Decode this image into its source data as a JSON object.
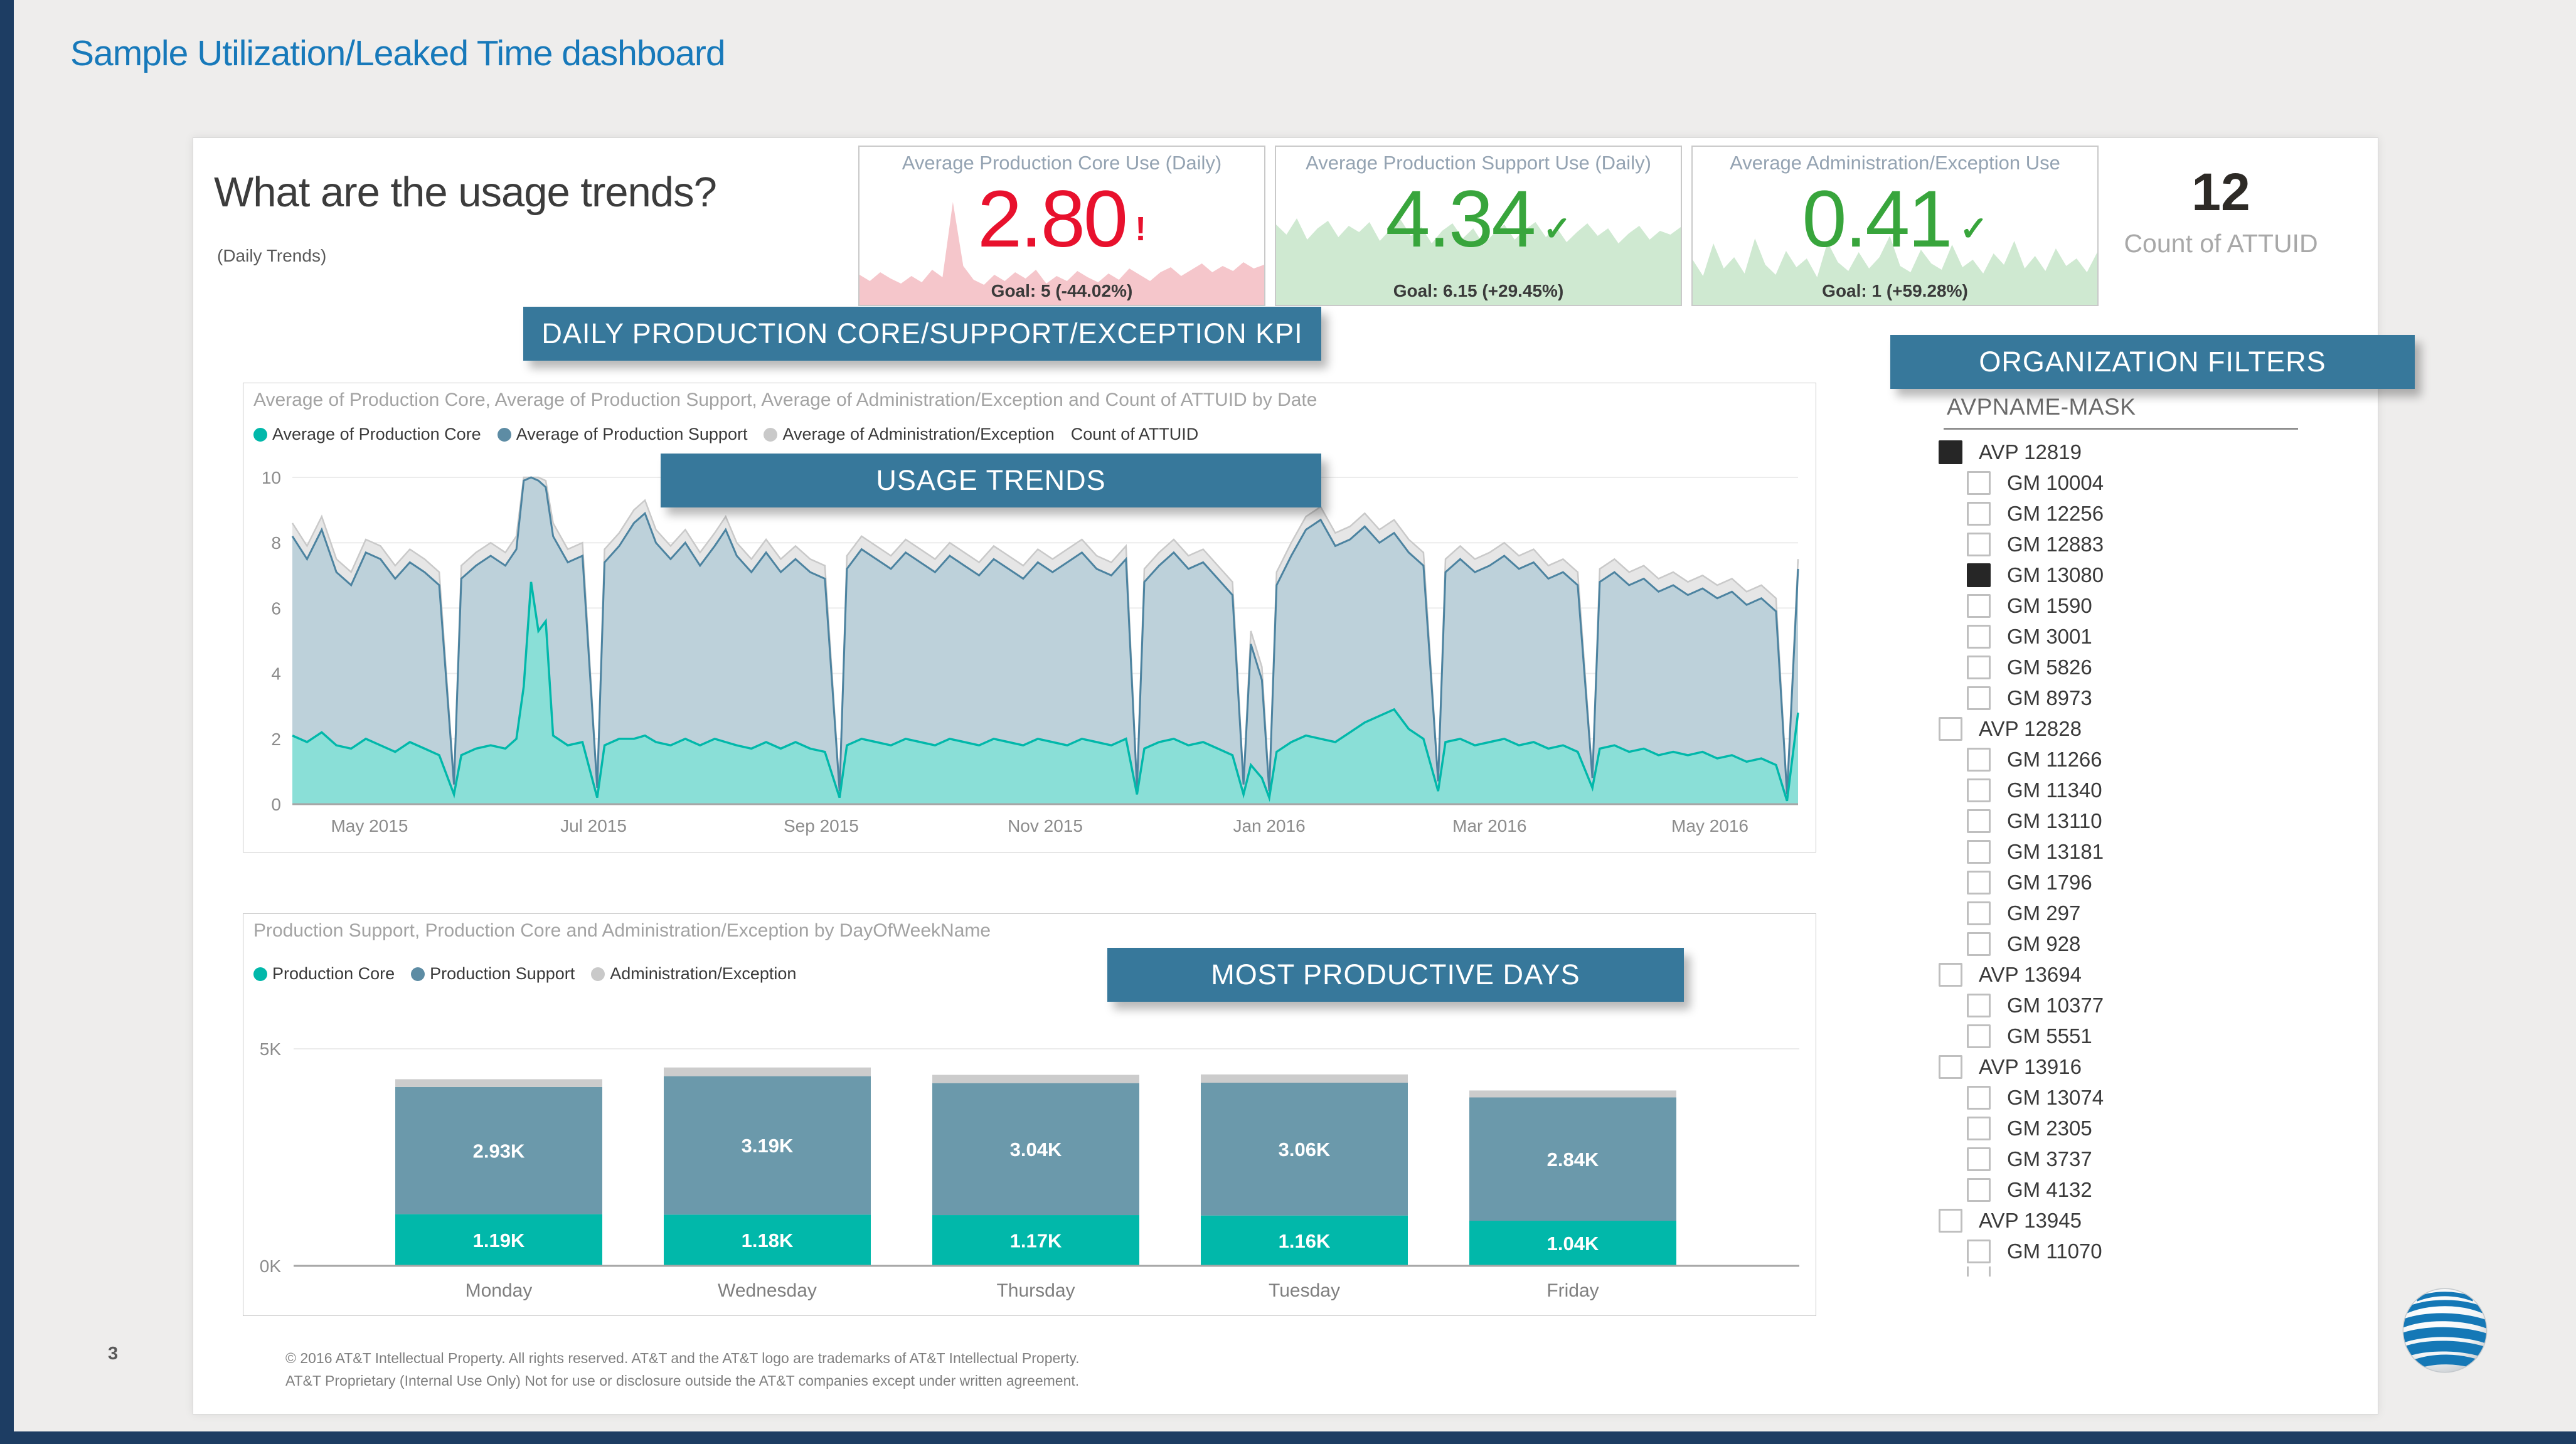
{
  "page": {
    "title": "Sample Utilization/Leaked Time dashboard",
    "page_number": "3",
    "footer_line1": "© 2016 AT&T Intellectual Property. All rights reserved. AT&T and the AT&T logo are trademarks of AT&T Intellectual Property.",
    "footer_line2": "AT&T Proprietary (Internal Use Only) Not for use or disclosure outside the AT&T companies except under written agreement."
  },
  "colors": {
    "banner": "#37789b",
    "title_blue": "#1779ba",
    "navy_strip": "#1d3d63",
    "core": "#01b8aa",
    "core_fill": "#8adfd7",
    "support": "#4c83a0",
    "support_fill": "#bdd1da",
    "admin": "#c9c9c9",
    "admin_fill": "#e6e6e6",
    "kpi_red": "#e8112d",
    "kpi_red_fill": "#f5c6cb",
    "kpi_green": "#38a53c",
    "kpi_green_fill": "#cfe9d1",
    "axis_text": "#8c8c8c",
    "gridline": "#ececec",
    "axis_line": "#a6a6a6"
  },
  "header": {
    "question": "What are the usage trends?",
    "subtitle": "(Daily Trends)"
  },
  "banners": {
    "kpi": "DAILY PRODUCTION CORE/SUPPORT/EXCEPTION KPI",
    "usage": "USAGE TRENDS",
    "days": "MOST PRODUCTIVE DAYS",
    "filters": "ORGANIZATION FILTERS"
  },
  "kpis": [
    {
      "title": "Average Production Core Use (Daily)",
      "value": "2.80",
      "status_icon": "!",
      "theme": "red",
      "goal_text": "Goal: 5 (-44.02%)",
      "spark": [
        2.4,
        1.9,
        2.6,
        2.1,
        1.7,
        2.3,
        1.8,
        2.8,
        2.2,
        8.2,
        3.1,
        2.0,
        1.6,
        2.4,
        1.9,
        2.6,
        2.1,
        2.8,
        1.7,
        2.3,
        1.9,
        2.7,
        2.2,
        1.8,
        2.5,
        2.0,
        2.9,
        2.4,
        1.9,
        2.6,
        3.0,
        2.3,
        2.8,
        3.3,
        2.6,
        3.1,
        2.7,
        3.4,
        2.9,
        3.2
      ]
    },
    {
      "title": "Average Production Support Use (Daily)",
      "value": "4.34",
      "status_icon": "✓",
      "theme": "green",
      "goal_text": "Goal: 6.15 (+29.45%)",
      "spark": [
        6.4,
        5.6,
        6.9,
        5.2,
        6.1,
        6.7,
        5.4,
        6.3,
        5.8,
        6.6,
        5.1,
        6.0,
        6.8,
        5.5,
        6.2,
        4.9,
        5.9,
        6.5,
        5.3,
        6.1,
        4.8,
        5.7,
        6.4,
        5.2,
        6.0,
        6.6,
        5.4,
        6.2,
        5.0,
        5.8,
        6.5,
        5.5,
        6.1,
        4.9,
        5.7,
        6.3,
        5.2,
        5.9,
        5.6,
        6.2
      ]
    },
    {
      "title": "Average Administration/Exception Use",
      "value": "0.41",
      "status_icon": "✓",
      "theme": "green",
      "goal_text": "Goal: 1 (+59.28%)",
      "spark": [
        3.6,
        2.3,
        4.9,
        2.9,
        3.8,
        2.5,
        5.3,
        3.2,
        2.4,
        4.3,
        3.0,
        3.7,
        2.2,
        5.0,
        3.4,
        2.7,
        4.2,
        2.9,
        3.8,
        5.5,
        3.1,
        2.6,
        4.4,
        3.3,
        2.8,
        4.8,
        3.0,
        3.6,
        2.5,
        4.1,
        3.2,
        5.1,
        2.9,
        3.9,
        2.7,
        4.5,
        3.1,
        3.7,
        2.6,
        4.2
      ]
    }
  ],
  "attuid": {
    "value": "12",
    "label": "Count of ATTUID"
  },
  "filters": {
    "field": "AVPNAME-MASK",
    "items": [
      {
        "label": "AVP 12819",
        "level": 0,
        "checked": true
      },
      {
        "label": "GM 10004",
        "level": 1,
        "checked": false
      },
      {
        "label": "GM 12256",
        "level": 1,
        "checked": false
      },
      {
        "label": "GM 12883",
        "level": 1,
        "checked": false
      },
      {
        "label": "GM 13080",
        "level": 1,
        "checked": true
      },
      {
        "label": "GM 1590",
        "level": 1,
        "checked": false
      },
      {
        "label": "GM 3001",
        "level": 1,
        "checked": false
      },
      {
        "label": "GM 5826",
        "level": 1,
        "checked": false
      },
      {
        "label": "GM 8973",
        "level": 1,
        "checked": false
      },
      {
        "label": "AVP 12828",
        "level": 0,
        "checked": false
      },
      {
        "label": "GM 11266",
        "level": 1,
        "checked": false
      },
      {
        "label": "GM 11340",
        "level": 1,
        "checked": false
      },
      {
        "label": "GM 13110",
        "level": 1,
        "checked": false
      },
      {
        "label": "GM 13181",
        "level": 1,
        "checked": false
      },
      {
        "label": "GM 1796",
        "level": 1,
        "checked": false
      },
      {
        "label": "GM 297",
        "level": 1,
        "checked": false
      },
      {
        "label": "GM 928",
        "level": 1,
        "checked": false
      },
      {
        "label": "AVP 13694",
        "level": 0,
        "checked": false
      },
      {
        "label": "GM 10377",
        "level": 1,
        "checked": false
      },
      {
        "label": "GM 5551",
        "level": 1,
        "checked": false
      },
      {
        "label": "AVP 13916",
        "level": 0,
        "checked": false
      },
      {
        "label": "GM 13074",
        "level": 1,
        "checked": false
      },
      {
        "label": "GM 2305",
        "level": 1,
        "checked": false
      },
      {
        "label": "GM 3737",
        "level": 1,
        "checked": false
      },
      {
        "label": "GM 4132",
        "level": 1,
        "checked": false
      },
      {
        "label": "AVP 13945",
        "level": 0,
        "checked": false
      },
      {
        "label": "GM 11070",
        "level": 1,
        "checked": false
      },
      {
        "label": "",
        "level": 1,
        "checked": false,
        "partial": true
      }
    ]
  },
  "chart_data": [
    {
      "type": "area",
      "title": "Average of Production Core, Average of Production Support, Average of Administration/Exception and Count of ATTUID by Date",
      "legend": [
        {
          "label": "Average of Production Core",
          "color": "#01b8aa"
        },
        {
          "label": "Average of Production Support",
          "color": "#5d8ca4"
        },
        {
          "label": "Average of Administration/Exception",
          "color": "#c9c9c9"
        },
        {
          "label": "Count of ATTUID",
          "color": null
        }
      ],
      "xlabel": "Date",
      "x_ticks": [
        "May 2015",
        "Jul 2015",
        "Sep 2015",
        "Nov 2015",
        "Jan 2016",
        "Mar 2016",
        "May 2016"
      ],
      "tick_days": [
        21,
        82,
        144,
        205,
        266,
        326,
        386
      ],
      "x_day_range": [
        0,
        410
      ],
      "x_start_date": "2015-04-10",
      "y_ticks": [
        0,
        2,
        4,
        6,
        8,
        10
      ],
      "ylim": [
        0,
        10
      ],
      "grid": true,
      "legend_position": "top",
      "note": "Daily series sampled/estimated from pixels. Columns per point: [day_offset, core, support_top, admin_top]; support_top and admin_top are the plotted upper edges of the blue and gray areas.",
      "points": [
        [
          0,
          2.1,
          8.2,
          8.6
        ],
        [
          4,
          1.9,
          7.5,
          7.9
        ],
        [
          8,
          2.2,
          8.4,
          8.8
        ],
        [
          12,
          1.8,
          7.1,
          7.5
        ],
        [
          16,
          1.7,
          6.7,
          7.1
        ],
        [
          20,
          2.0,
          7.7,
          8.1
        ],
        [
          24,
          1.8,
          7.5,
          7.9
        ],
        [
          28,
          1.6,
          6.9,
          7.3
        ],
        [
          32,
          1.9,
          7.4,
          7.8
        ],
        [
          36,
          1.7,
          7.1,
          7.5
        ],
        [
          40,
          1.5,
          6.7,
          7.1
        ],
        [
          44,
          0.3,
          0.6,
          0.7
        ],
        [
          46,
          1.5,
          6.9,
          7.3
        ],
        [
          50,
          1.7,
          7.3,
          7.7
        ],
        [
          54,
          1.8,
          7.6,
          8.0
        ],
        [
          58,
          1.7,
          7.3,
          7.7
        ],
        [
          61,
          2.0,
          7.8,
          8.2
        ],
        [
          63,
          3.6,
          9.9,
          10
        ],
        [
          65,
          6.8,
          10,
          10
        ],
        [
          67,
          5.3,
          9.9,
          10
        ],
        [
          69,
          5.6,
          9.7,
          9.9
        ],
        [
          71,
          2.1,
          8.2,
          8.6
        ],
        [
          75,
          1.8,
          7.4,
          7.8
        ],
        [
          79,
          1.9,
          7.6,
          8.0
        ],
        [
          83,
          0.2,
          0.5,
          0.6
        ],
        [
          85,
          1.8,
          7.4,
          7.8
        ],
        [
          89,
          2.0,
          7.9,
          8.3
        ],
        [
          93,
          2.0,
          8.6,
          9.0
        ],
        [
          96,
          2.1,
          8.9,
          9.3
        ],
        [
          99,
          1.9,
          8.0,
          8.4
        ],
        [
          103,
          1.8,
          7.5,
          7.9
        ],
        [
          107,
          2.0,
          8.0,
          8.4
        ],
        [
          111,
          1.8,
          7.3,
          7.7
        ],
        [
          115,
          2.0,
          7.9,
          8.3
        ],
        [
          118,
          1.9,
          8.4,
          8.8
        ],
        [
          121,
          1.8,
          7.6,
          8.0
        ],
        [
          125,
          1.7,
          7.1,
          7.5
        ],
        [
          129,
          1.9,
          7.7,
          8.1
        ],
        [
          133,
          1.7,
          7.1,
          7.5
        ],
        [
          137,
          1.9,
          7.5,
          7.9
        ],
        [
          141,
          1.7,
          7.1,
          7.5
        ],
        [
          145,
          1.6,
          6.9,
          7.3
        ],
        [
          149,
          0.2,
          0.4,
          0.5
        ],
        [
          151,
          1.8,
          7.2,
          7.6
        ],
        [
          155,
          2.0,
          7.8,
          8.2
        ],
        [
          159,
          1.9,
          7.5,
          7.9
        ],
        [
          163,
          1.8,
          7.2,
          7.6
        ],
        [
          167,
          2.0,
          7.7,
          8.1
        ],
        [
          171,
          1.9,
          7.4,
          7.8
        ],
        [
          175,
          1.8,
          7.1,
          7.5
        ],
        [
          179,
          2.0,
          7.6,
          8.0
        ],
        [
          183,
          1.9,
          7.3,
          7.7
        ],
        [
          187,
          1.8,
          7.0,
          7.4
        ],
        [
          191,
          2.0,
          7.5,
          7.9
        ],
        [
          195,
          1.9,
          7.2,
          7.6
        ],
        [
          199,
          1.8,
          6.9,
          7.3
        ],
        [
          203,
          2.0,
          7.4,
          7.8
        ],
        [
          207,
          1.9,
          7.1,
          7.5
        ],
        [
          211,
          1.8,
          7.4,
          7.8
        ],
        [
          215,
          2.0,
          7.7,
          8.1
        ],
        [
          219,
          1.9,
          7.2,
          7.6
        ],
        [
          223,
          1.8,
          7.0,
          7.4
        ],
        [
          227,
          2.0,
          7.5,
          7.9
        ],
        [
          230,
          0.3,
          0.5,
          0.6
        ],
        [
          232,
          1.7,
          6.8,
          7.2
        ],
        [
          236,
          1.9,
          7.3,
          7.7
        ],
        [
          240,
          2.0,
          7.7,
          8.1
        ],
        [
          244,
          1.8,
          7.2,
          7.6
        ],
        [
          248,
          1.9,
          7.4,
          7.8
        ],
        [
          252,
          1.7,
          6.9,
          7.3
        ],
        [
          256,
          1.5,
          6.4,
          6.8
        ],
        [
          259,
          0.3,
          0.6,
          0.7
        ],
        [
          261,
          1.2,
          4.9,
          5.3
        ],
        [
          264,
          0.8,
          3.8,
          4.2
        ],
        [
          266,
          0.2,
          0.4,
          0.5
        ],
        [
          268,
          1.6,
          6.7,
          7.1
        ],
        [
          272,
          1.9,
          7.6,
          8.0
        ],
        [
          276,
          2.1,
          8.4,
          8.8
        ],
        [
          280,
          2.0,
          8.7,
          9.1
        ],
        [
          284,
          1.9,
          7.9,
          8.3
        ],
        [
          288,
          2.2,
          8.1,
          8.5
        ],
        [
          292,
          2.5,
          8.5,
          8.9
        ],
        [
          296,
          2.7,
          8.0,
          8.4
        ],
        [
          300,
          2.9,
          8.3,
          8.7
        ],
        [
          304,
          2.3,
          7.7,
          8.1
        ],
        [
          308,
          2.0,
          7.3,
          7.7
        ],
        [
          312,
          0.4,
          0.7,
          0.8
        ],
        [
          314,
          1.9,
          7.1,
          7.5
        ],
        [
          318,
          2.0,
          7.5,
          7.9
        ],
        [
          322,
          1.8,
          7.1,
          7.5
        ],
        [
          326,
          1.9,
          7.3,
          7.7
        ],
        [
          330,
          2.0,
          7.6,
          8.0
        ],
        [
          334,
          1.8,
          7.2,
          7.6
        ],
        [
          338,
          1.9,
          7.4,
          7.8
        ],
        [
          342,
          1.7,
          6.9,
          7.3
        ],
        [
          346,
          1.8,
          7.1,
          7.5
        ],
        [
          350,
          1.6,
          6.7,
          7.1
        ],
        [
          354,
          0.5,
          0.8,
          0.9
        ],
        [
          356,
          1.7,
          6.8,
          7.2
        ],
        [
          360,
          1.8,
          7.1,
          7.5
        ],
        [
          364,
          1.6,
          6.7,
          7.1
        ],
        [
          368,
          1.7,
          6.9,
          7.3
        ],
        [
          372,
          1.5,
          6.5,
          6.9
        ],
        [
          376,
          1.6,
          6.7,
          7.1
        ],
        [
          380,
          1.5,
          6.4,
          6.8
        ],
        [
          384,
          1.6,
          6.6,
          7.0
        ],
        [
          388,
          1.4,
          6.3,
          6.7
        ],
        [
          392,
          1.5,
          6.5,
          6.9
        ],
        [
          396,
          1.3,
          6.1,
          6.5
        ],
        [
          400,
          1.4,
          6.3,
          6.7
        ],
        [
          404,
          1.2,
          5.9,
          6.3
        ],
        [
          407,
          0.1,
          0.3,
          0.4
        ],
        [
          410,
          2.8,
          7.2,
          7.5
        ]
      ]
    },
    {
      "type": "bar",
      "title": "Production Support, Production Core and Administration/Exception by DayOfWeekName",
      "legend": [
        {
          "label": "Production Core",
          "color": "#01b8aa"
        },
        {
          "label": "Production Support",
          "color": "#5d8ca4"
        },
        {
          "label": "Administration/Exception",
          "color": "#c9c9c9"
        }
      ],
      "categories": [
        "Monday",
        "Wednesday",
        "Thursday",
        "Tuesday",
        "Friday"
      ],
      "series": [
        {
          "name": "Production Core",
          "values_k": [
            1.19,
            1.18,
            1.17,
            1.16,
            1.04
          ],
          "labels": [
            "1.19K",
            "1.18K",
            "1.17K",
            "1.16K",
            "1.04K"
          ],
          "color": "#01b8aa"
        },
        {
          "name": "Production Support",
          "values_k": [
            2.93,
            3.19,
            3.04,
            3.06,
            2.84
          ],
          "labels": [
            "2.93K",
            "3.19K",
            "3.04K",
            "3.06K",
            "2.84K"
          ],
          "color": "#6b99ab"
        },
        {
          "name": "Administration/Exception",
          "values_k": [
            0.18,
            0.2,
            0.19,
            0.19,
            0.16
          ],
          "labels": [
            "",
            "",
            "",
            "",
            ""
          ],
          "color": "#cccccc"
        }
      ],
      "stacked": true,
      "y_ticks": [
        "0K",
        "5K"
      ],
      "ylim_k": [
        0,
        5
      ],
      "xlabel": "DayOfWeekName",
      "legend_position": "top"
    }
  ]
}
